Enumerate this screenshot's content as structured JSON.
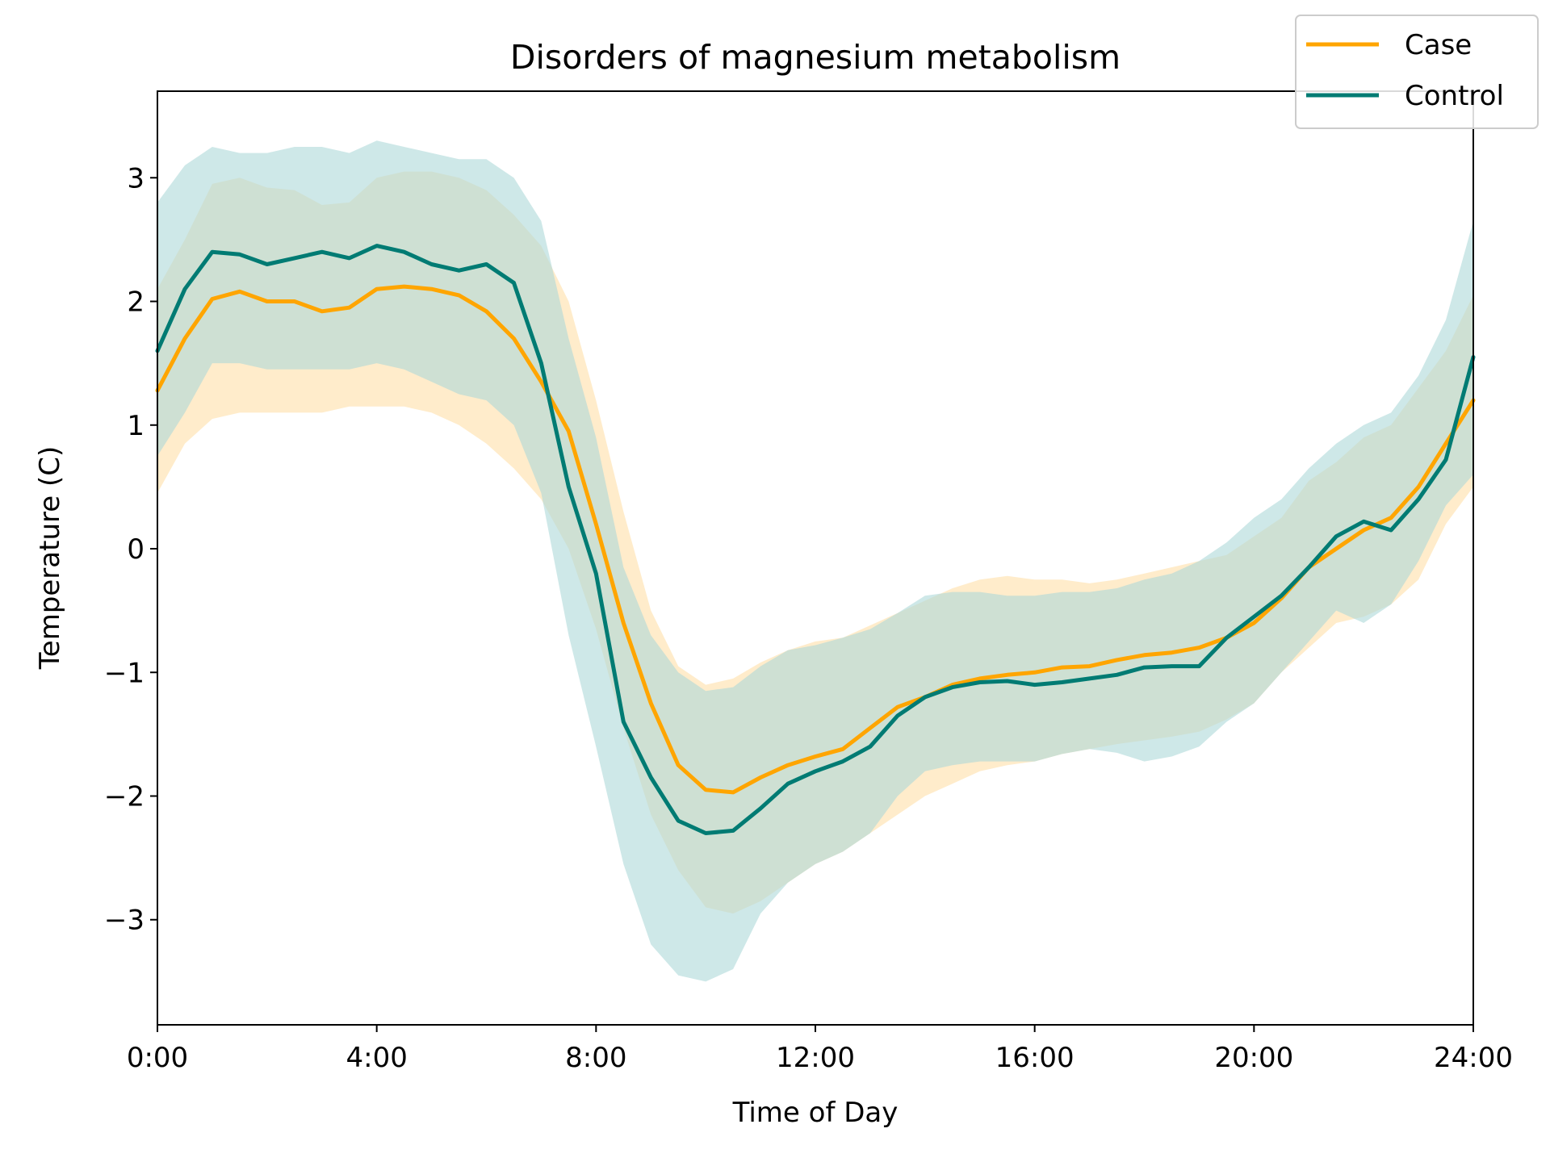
{
  "chart_data": {
    "type": "line",
    "title": "Disorders of magnesium metabolism",
    "xlabel": "Time of Day",
    "ylabel": "Temperature (C)",
    "xlim": [
      0,
      24
    ],
    "ylim": [
      -3.85,
      3.7
    ],
    "x_ticks": [
      0,
      4,
      8,
      12,
      16,
      20,
      24
    ],
    "x_tick_labels": [
      "0:00",
      "4:00",
      "8:00",
      "12:00",
      "16:00",
      "20:00",
      "24:00"
    ],
    "y_ticks": [
      -3,
      -2,
      -1,
      0,
      1,
      2,
      3
    ],
    "y_tick_labels": [
      "−3",
      "−2",
      "−1",
      "0",
      "1",
      "2",
      "3"
    ],
    "grid": false,
    "legend_position": "top-right",
    "x": [
      0,
      0.5,
      1,
      1.5,
      2,
      2.5,
      3,
      3.5,
      4,
      4.5,
      5,
      5.5,
      6,
      6.5,
      7,
      7.5,
      8,
      8.5,
      9,
      9.5,
      10,
      10.5,
      11,
      11.5,
      12,
      12.5,
      13,
      13.5,
      14,
      14.5,
      15,
      15.5,
      16,
      16.5,
      17,
      17.5,
      18,
      18.5,
      19,
      19.5,
      20,
      20.5,
      21,
      21.5,
      22,
      22.5,
      23,
      23.5,
      24
    ],
    "series": [
      {
        "name": "Case",
        "color": "#FFA500",
        "band_color": "#FFE0A8",
        "values": [
          1.28,
          1.7,
          2.02,
          2.08,
          2.0,
          2.0,
          1.92,
          1.95,
          2.1,
          2.12,
          2.1,
          2.05,
          1.92,
          1.7,
          1.35,
          0.95,
          0.2,
          -0.6,
          -1.25,
          -1.75,
          -1.95,
          -1.97,
          -1.85,
          -1.75,
          -1.68,
          -1.62,
          -1.45,
          -1.28,
          -1.2,
          -1.1,
          -1.05,
          -1.02,
          -1.0,
          -0.96,
          -0.95,
          -0.9,
          -0.86,
          -0.84,
          -0.8,
          -0.72,
          -0.6,
          -0.4,
          -0.15,
          0.0,
          0.15,
          0.25,
          0.5,
          0.85,
          1.2
        ],
        "lower": [
          0.45,
          0.85,
          1.05,
          1.1,
          1.1,
          1.1,
          1.1,
          1.15,
          1.15,
          1.15,
          1.1,
          1.0,
          0.85,
          0.65,
          0.4,
          0.0,
          -0.65,
          -1.45,
          -2.15,
          -2.6,
          -2.9,
          -2.95,
          -2.85,
          -2.7,
          -2.55,
          -2.45,
          -2.3,
          -2.15,
          -2.0,
          -1.9,
          -1.8,
          -1.75,
          -1.72,
          -1.66,
          -1.62,
          -1.58,
          -1.55,
          -1.52,
          -1.48,
          -1.38,
          -1.25,
          -1.0,
          -0.8,
          -0.6,
          -0.55,
          -0.45,
          -0.25,
          0.2,
          0.5
        ],
        "upper": [
          2.1,
          2.5,
          2.95,
          3.0,
          2.92,
          2.9,
          2.78,
          2.8,
          3.0,
          3.05,
          3.05,
          3.0,
          2.9,
          2.7,
          2.45,
          2.0,
          1.2,
          0.3,
          -0.5,
          -0.95,
          -1.1,
          -1.05,
          -0.92,
          -0.82,
          -0.75,
          -0.72,
          -0.62,
          -0.52,
          -0.42,
          -0.32,
          -0.25,
          -0.22,
          -0.25,
          -0.25,
          -0.28,
          -0.25,
          -0.2,
          -0.15,
          -0.1,
          -0.05,
          0.1,
          0.25,
          0.55,
          0.7,
          0.9,
          1.0,
          1.3,
          1.6,
          2.05
        ]
      },
      {
        "name": "Control",
        "color": "#007B73",
        "band_color": "#AED8D8",
        "values": [
          1.6,
          2.1,
          2.4,
          2.38,
          2.3,
          2.35,
          2.4,
          2.35,
          2.45,
          2.4,
          2.3,
          2.25,
          2.3,
          2.15,
          1.5,
          0.5,
          -0.2,
          -1.4,
          -1.85,
          -2.2,
          -2.3,
          -2.28,
          -2.1,
          -1.9,
          -1.8,
          -1.72,
          -1.6,
          -1.35,
          -1.2,
          -1.12,
          -1.08,
          -1.07,
          -1.1,
          -1.08,
          -1.05,
          -1.02,
          -0.96,
          -0.95,
          -0.95,
          -0.72,
          -0.55,
          -0.38,
          -0.15,
          0.1,
          0.22,
          0.15,
          0.4,
          0.72,
          1.55
        ],
        "lower": [
          0.75,
          1.1,
          1.5,
          1.5,
          1.45,
          1.45,
          1.45,
          1.45,
          1.5,
          1.45,
          1.35,
          1.25,
          1.2,
          1.0,
          0.45,
          -0.7,
          -1.6,
          -2.55,
          -3.2,
          -3.45,
          -3.5,
          -3.4,
          -2.95,
          -2.7,
          -2.55,
          -2.45,
          -2.3,
          -2.0,
          -1.8,
          -1.75,
          -1.72,
          -1.72,
          -1.72,
          -1.66,
          -1.62,
          -1.65,
          -1.72,
          -1.68,
          -1.6,
          -1.4,
          -1.25,
          -1.0,
          -0.75,
          -0.5,
          -0.6,
          -0.45,
          -0.1,
          0.35,
          0.6
        ],
        "upper": [
          2.8,
          3.1,
          3.25,
          3.2,
          3.2,
          3.25,
          3.25,
          3.2,
          3.3,
          3.25,
          3.2,
          3.15,
          3.15,
          3.0,
          2.65,
          1.7,
          0.9,
          -0.15,
          -0.7,
          -1.0,
          -1.15,
          -1.12,
          -0.95,
          -0.82,
          -0.78,
          -0.72,
          -0.65,
          -0.52,
          -0.38,
          -0.35,
          -0.35,
          -0.38,
          -0.38,
          -0.35,
          -0.35,
          -0.32,
          -0.25,
          -0.2,
          -0.1,
          0.05,
          0.25,
          0.4,
          0.65,
          0.85,
          1.0,
          1.1,
          1.4,
          1.85,
          2.65
        ]
      }
    ]
  }
}
